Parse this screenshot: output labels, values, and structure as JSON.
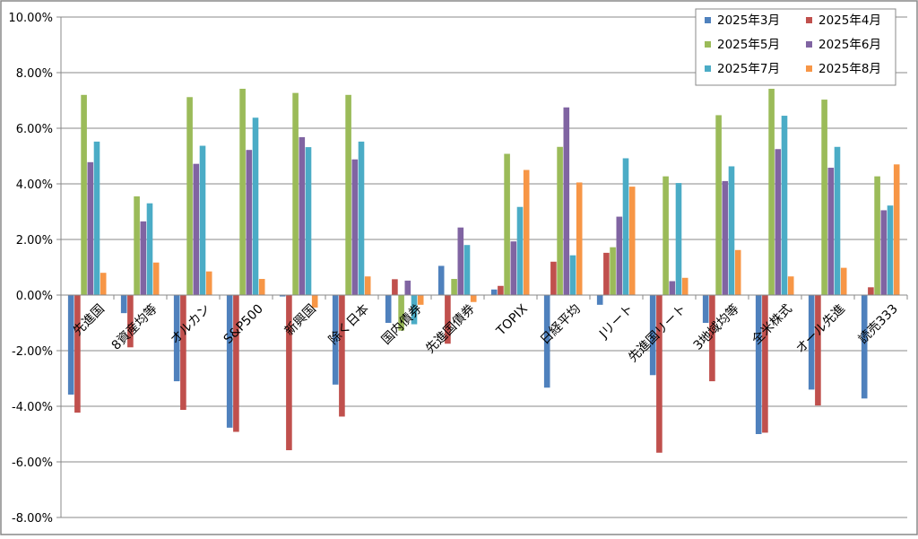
{
  "chart_data": {
    "type": "bar",
    "title": "",
    "xlabel": "",
    "ylabel": "",
    "ylim": [
      -8,
      10
    ],
    "yticks": [
      "10.00%",
      "8.00%",
      "6.00%",
      "4.00%",
      "2.00%",
      "0.00%",
      "-2.00%",
      "-4.00%",
      "-6.00%",
      "-8.00%"
    ],
    "grid": "horizontal",
    "legend_position": "top-right",
    "categories": [
      "先進国",
      "8資産均等",
      "オルカン",
      "S&P500",
      "新興国",
      "除く日本",
      "国内債券",
      "先進国債券",
      "TOPIX",
      "日経平均",
      "Jリート",
      "先進国リート",
      "3地域均等",
      "全米株式",
      "オール先進",
      "読売333"
    ],
    "series": [
      {
        "name": "2025年3月",
        "color": "#4F81BD",
        "values": [
          -3.58,
          -0.65,
          -3.1,
          -4.77,
          -0.05,
          -3.22,
          -1.0,
          1.05,
          0.2,
          -3.33,
          -0.35,
          -2.88,
          -1.0,
          -5.0,
          -3.4,
          -3.72
        ]
      },
      {
        "name": "2025年4月",
        "color": "#C0504D",
        "values": [
          -4.23,
          -1.88,
          -4.13,
          -4.92,
          -5.58,
          -4.37,
          0.57,
          -1.75,
          0.33,
          1.2,
          1.52,
          -5.67,
          -3.1,
          -4.95,
          -3.97,
          0.28
        ]
      },
      {
        "name": "2025年5月",
        "color": "#9BBB59",
        "values": [
          7.2,
          3.55,
          7.12,
          7.42,
          7.27,
          7.2,
          -1.28,
          0.58,
          5.08,
          5.33,
          1.72,
          4.27,
          6.47,
          7.42,
          7.03,
          4.27
        ]
      },
      {
        "name": "2025年6月",
        "color": "#8064A2",
        "values": [
          4.78,
          2.65,
          4.72,
          5.22,
          5.68,
          4.88,
          0.52,
          2.43,
          1.93,
          6.75,
          2.82,
          0.5,
          4.1,
          5.25,
          4.58,
          3.05
        ]
      },
      {
        "name": "2025年7月",
        "color": "#4BACC6",
        "values": [
          5.52,
          3.3,
          5.37,
          6.38,
          5.32,
          5.52,
          -1.05,
          1.8,
          3.17,
          1.43,
          4.92,
          4.03,
          4.63,
          6.45,
          5.33,
          3.22
        ]
      },
      {
        "name": "2025年8月",
        "color": "#F79646",
        "values": [
          0.8,
          1.17,
          0.85,
          0.58,
          -0.45,
          0.67,
          -0.35,
          -0.25,
          4.5,
          4.05,
          3.9,
          0.62,
          1.62,
          0.67,
          0.98,
          4.7
        ]
      }
    ]
  }
}
